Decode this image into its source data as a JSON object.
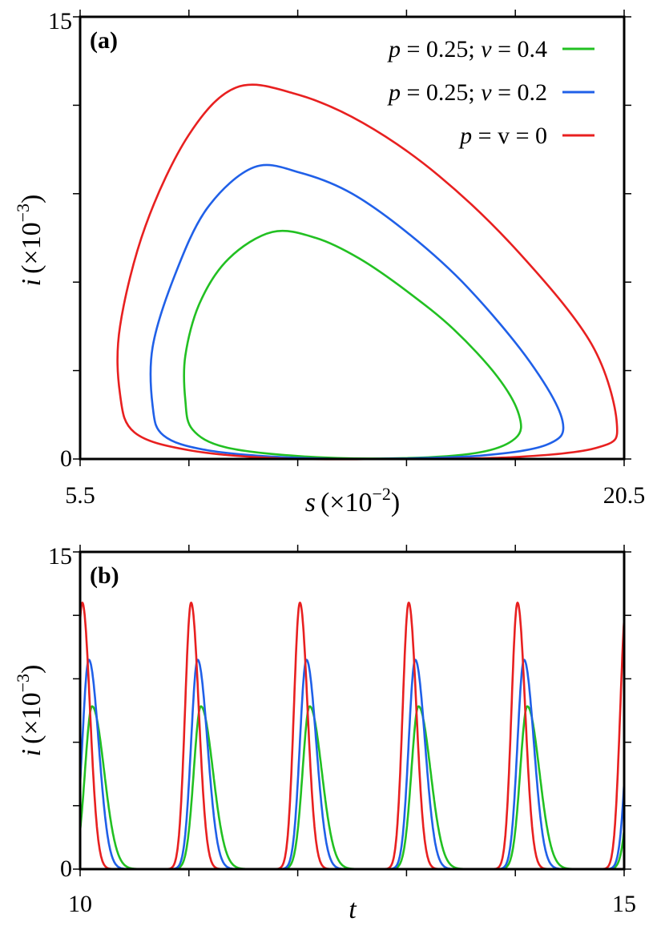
{
  "chart_data": [
    {
      "panel": "(a)",
      "type": "line",
      "xlabel": {
        "var": "s",
        "unit": "(×10",
        "exp": "−2",
        "close": ")"
      },
      "ylabel": {
        "var": "i",
        "unit": "(×10",
        "exp": "−3",
        "close": ")"
      },
      "xlim": [
        5.5,
        20.5
      ],
      "ylim": [
        0,
        15
      ],
      "xticks": [
        5.5,
        8.5,
        11.5,
        14.5,
        17.5,
        20.5
      ],
      "yticks": [
        0,
        3,
        6,
        9,
        12,
        15
      ],
      "xticklabels": [
        "5.5",
        "",
        "",
        "",
        "",
        "20.5"
      ],
      "yticklabels": [
        "0",
        "",
        "",
        "",
        "",
        "15"
      ],
      "legend_position": "top-right",
      "series": [
        {
          "name_parts": [
            "p",
            " = 0.25; ",
            "v",
            " = 0.4"
          ],
          "color": "#22c022",
          "points": [
            [
              10.8,
              7.7
            ],
            [
              12.0,
              7.5
            ],
            [
              13.2,
              6.8
            ],
            [
              14.5,
              5.7
            ],
            [
              15.8,
              4.4
            ],
            [
              17.0,
              2.8
            ],
            [
              17.6,
              1.5
            ],
            [
              17.5,
              0.7
            ],
            [
              16.4,
              0.2
            ],
            [
              14.0,
              0.02
            ],
            [
              11.5,
              0.1
            ],
            [
              9.5,
              0.4
            ],
            [
              8.6,
              1.0
            ],
            [
              8.4,
              2.0
            ],
            [
              8.4,
              3.5
            ],
            [
              8.8,
              5.3
            ],
            [
              9.6,
              6.8
            ],
            [
              10.8,
              7.7
            ]
          ]
        },
        {
          "name_parts": [
            "p",
            " = 0.25; ",
            "v",
            " = 0.2"
          ],
          "color": "#2060e8",
          "points": [
            [
              10.3,
              9.9
            ],
            [
              11.6,
              9.7
            ],
            [
              13.0,
              9.0
            ],
            [
              14.6,
              7.6
            ],
            [
              16.2,
              5.8
            ],
            [
              17.9,
              3.3
            ],
            [
              18.8,
              1.3
            ],
            [
              18.4,
              0.5
            ],
            [
              16.6,
              0.12
            ],
            [
              14.0,
              0.01
            ],
            [
              11.3,
              0.05
            ],
            [
              9.0,
              0.3
            ],
            [
              7.8,
              0.8
            ],
            [
              7.5,
              1.8
            ],
            [
              7.5,
              3.8
            ],
            [
              8.1,
              6.2
            ],
            [
              9.0,
              8.5
            ],
            [
              10.3,
              9.9
            ]
          ]
        },
        {
          "name_parts": [
            "p",
            " = v = 0"
          ],
          "color": "#e82020",
          "points": [
            [
              9.8,
              12.6
            ],
            [
              11.4,
              12.4
            ],
            [
              13.3,
              11.4
            ],
            [
              15.4,
              9.6
            ],
            [
              17.6,
              7.0
            ],
            [
              19.6,
              3.9
            ],
            [
              20.3,
              1.2
            ],
            [
              19.8,
              0.4
            ],
            [
              17.4,
              0.06
            ],
            [
              14.0,
              0.0
            ],
            [
              11.0,
              0.02
            ],
            [
              8.5,
              0.3
            ],
            [
              7.0,
              0.9
            ],
            [
              6.6,
              2.2
            ],
            [
              6.6,
              4.5
            ],
            [
              7.3,
              7.9
            ],
            [
              8.5,
              11.0
            ],
            [
              9.8,
              12.6
            ]
          ]
        }
      ]
    },
    {
      "panel": "(b)",
      "type": "line",
      "xlabel": {
        "var": "t"
      },
      "ylabel": {
        "var": "i",
        "unit": "(×10",
        "exp": "−3",
        "close": ")"
      },
      "xlim": [
        10,
        15
      ],
      "ylim": [
        0,
        15
      ],
      "xticks": [
        10,
        11,
        12,
        13,
        14,
        15
      ],
      "yticks": [
        0,
        3,
        6,
        9,
        12,
        15
      ],
      "xticklabels": [
        "10",
        "",
        "",
        "",
        "",
        "15"
      ],
      "yticklabels": [
        "0",
        "",
        "",
        "",
        "",
        "15"
      ],
      "period": 1.0,
      "series": [
        {
          "name": "p = 0.25; v = 0.4",
          "color": "#22c022",
          "peak": 7.7,
          "peak_time": 10.11,
          "sigma_rise": 0.065,
          "sigma_fall": 0.11
        },
        {
          "name": "p = 0.25; v = 0.2",
          "color": "#2060e8",
          "peak": 9.9,
          "peak_time": 10.08,
          "sigma_rise": 0.06,
          "sigma_fall": 0.09
        },
        {
          "name": "p = v = 0",
          "color": "#e82020",
          "peak": 12.6,
          "peak_time": 10.02,
          "sigma_rise": 0.055,
          "sigma_fall": 0.07
        }
      ]
    }
  ]
}
